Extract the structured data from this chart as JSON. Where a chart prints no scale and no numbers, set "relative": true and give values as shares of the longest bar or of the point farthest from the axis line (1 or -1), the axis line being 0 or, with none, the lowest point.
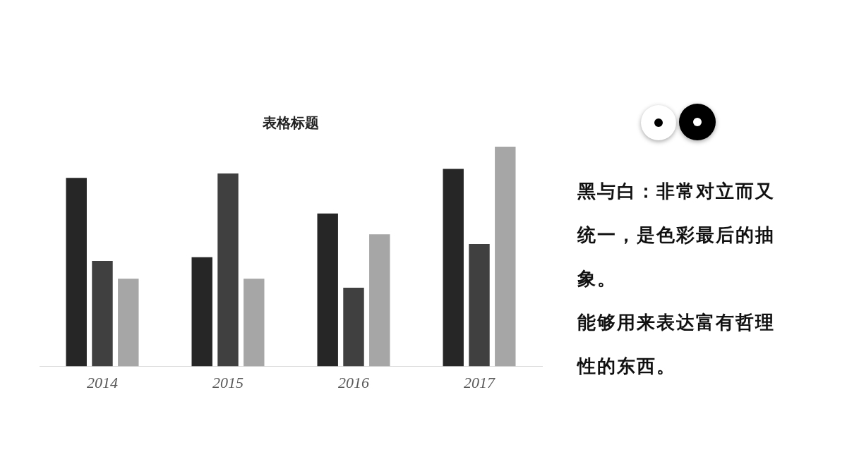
{
  "chart_data": {
    "type": "bar",
    "title": "表格标题",
    "relative": true,
    "categories": [
      "2014",
      "2015",
      "2016",
      "2017"
    ],
    "series": [
      {
        "color": "#262626",
        "values": [
          0.858,
          0.497,
          0.696,
          0.899
        ]
      },
      {
        "color": "#404040",
        "values": [
          0.48,
          0.878,
          0.358,
          0.557
        ]
      },
      {
        "color": "#a6a6a6",
        "values": [
          0.399,
          0.399,
          0.601,
          1
        ]
      }
    ],
    "grid": false,
    "legend": false,
    "annotations": [
      "黑与白：非常对立而又统一，是色彩最后的抽象。",
      "能够用来表达富有哲理性的东西。"
    ]
  }
}
